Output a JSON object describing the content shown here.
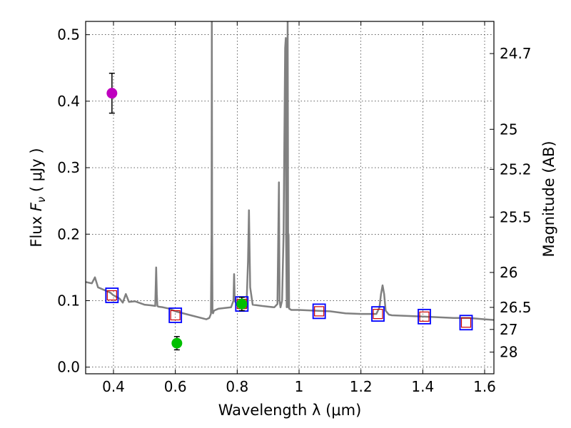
{
  "chart_data": {
    "type": "line",
    "xlabel": "Wavelength  λ (μm)",
    "ylabel": "Flux  F_ν  ( μJy )",
    "ylabel_parts": {
      "prefix": "Flux  ",
      "symbol": "F",
      "subscript": "ν",
      "suffix": "  ( μJy )"
    },
    "y2label": "Magnitude (AB)",
    "xlim": [
      0.31,
      1.63
    ],
    "ylim": [
      -0.01,
      0.52
    ],
    "grid": true,
    "xticks": [
      0.4,
      0.6,
      0.8,
      1.0,
      1.2,
      1.4,
      1.6
    ],
    "xtick_labels": [
      "0.4",
      "0.6",
      "0.8",
      "1",
      "1.2",
      "1.4",
      "1.6"
    ],
    "yticks": [
      0.0,
      0.1,
      0.2,
      0.3,
      0.4,
      0.5
    ],
    "ytick_labels": [
      "0.0",
      "0.1",
      "0.2",
      "0.3",
      "0.4",
      "0.5"
    ],
    "y2ticks": [
      {
        "label": "24.7",
        "flux": 0.4716
      },
      {
        "label": "25",
        "flux": 0.3577
      },
      {
        "label": "25.2",
        "flux": 0.2975
      },
      {
        "label": "25.5",
        "flux": 0.2257
      },
      {
        "label": "26",
        "flux": 0.1424
      },
      {
        "label": "26.5",
        "flux": 0.0899
      },
      {
        "label": "27",
        "flux": 0.0567
      },
      {
        "label": "28",
        "flux": 0.0226
      }
    ],
    "series": [
      {
        "name": "model-spectrum",
        "color": "#808080",
        "x": [
          0.31,
          0.33,
          0.34,
          0.35,
          0.36,
          0.38,
          0.39,
          0.4,
          0.42,
          0.43,
          0.44,
          0.45,
          0.47,
          0.5,
          0.52,
          0.535,
          0.538,
          0.54,
          0.542,
          0.545,
          0.56,
          0.58,
          0.6,
          0.65,
          0.7,
          0.71,
          0.715,
          0.717,
          0.718,
          0.719,
          0.72,
          0.722,
          0.725,
          0.74,
          0.76,
          0.78,
          0.788,
          0.79,
          0.792,
          0.8,
          0.82,
          0.83,
          0.835,
          0.838,
          0.842,
          0.85,
          0.88,
          0.9,
          0.92,
          0.93,
          0.935,
          0.937,
          0.94,
          0.945,
          0.95,
          0.955,
          0.957,
          0.958,
          0.96,
          0.962,
          0.963,
          0.964,
          0.965,
          0.966,
          0.968,
          0.975,
          1.0,
          1.05,
          1.1,
          1.15,
          1.2,
          1.25,
          1.26,
          1.265,
          1.27,
          1.275,
          1.28,
          1.29,
          1.3,
          1.35,
          1.4,
          1.45,
          1.5,
          1.55,
          1.6,
          1.63
        ],
        "y": [
          0.128,
          0.126,
          0.135,
          0.12,
          0.118,
          0.114,
          0.112,
          0.108,
          0.103,
          0.097,
          0.11,
          0.098,
          0.099,
          0.094,
          0.093,
          0.092,
          0.15,
          0.11,
          0.092,
          0.091,
          0.09,
          0.088,
          0.084,
          0.078,
          0.072,
          0.074,
          0.08,
          0.2,
          0.52,
          0.2,
          0.082,
          0.081,
          0.085,
          0.088,
          0.089,
          0.09,
          0.1,
          0.14,
          0.1,
          0.093,
          0.091,
          0.09,
          0.16,
          0.236,
          0.12,
          0.094,
          0.092,
          0.091,
          0.09,
          0.095,
          0.278,
          0.1,
          0.09,
          0.1,
          0.2,
          0.48,
          0.495,
          0.2,
          0.09,
          0.3,
          0.52,
          0.35,
          0.09,
          0.2,
          0.088,
          0.086,
          0.086,
          0.085,
          0.084,
          0.081,
          0.08,
          0.08,
          0.09,
          0.11,
          0.123,
          0.11,
          0.085,
          0.079,
          0.078,
          0.077,
          0.076,
          0.075,
          0.074,
          0.074,
          0.072,
          0.071
        ]
      }
    ],
    "model_photometry": [
      {
        "x": 0.395,
        "y": 0.108
      },
      {
        "x": 0.6,
        "y": 0.078
      },
      {
        "x": 0.815,
        "y": 0.095
      },
      {
        "x": 1.065,
        "y": 0.084
      },
      {
        "x": 1.255,
        "y": 0.08
      },
      {
        "x": 1.405,
        "y": 0.076
      },
      {
        "x": 1.54,
        "y": 0.067
      }
    ],
    "model_photometry_colors": {
      "box": "#0000ff",
      "inner": "#cc0000"
    },
    "observed_photometry": [
      {
        "x": 0.395,
        "y": 0.412,
        "err": 0.03,
        "color": "#bf00bf"
      },
      {
        "x": 0.605,
        "y": 0.036,
        "err": 0.01,
        "color": "#00bf00"
      },
      {
        "x": 0.815,
        "y": 0.095,
        "err": 0.01,
        "color": "#00bf00"
      }
    ]
  }
}
